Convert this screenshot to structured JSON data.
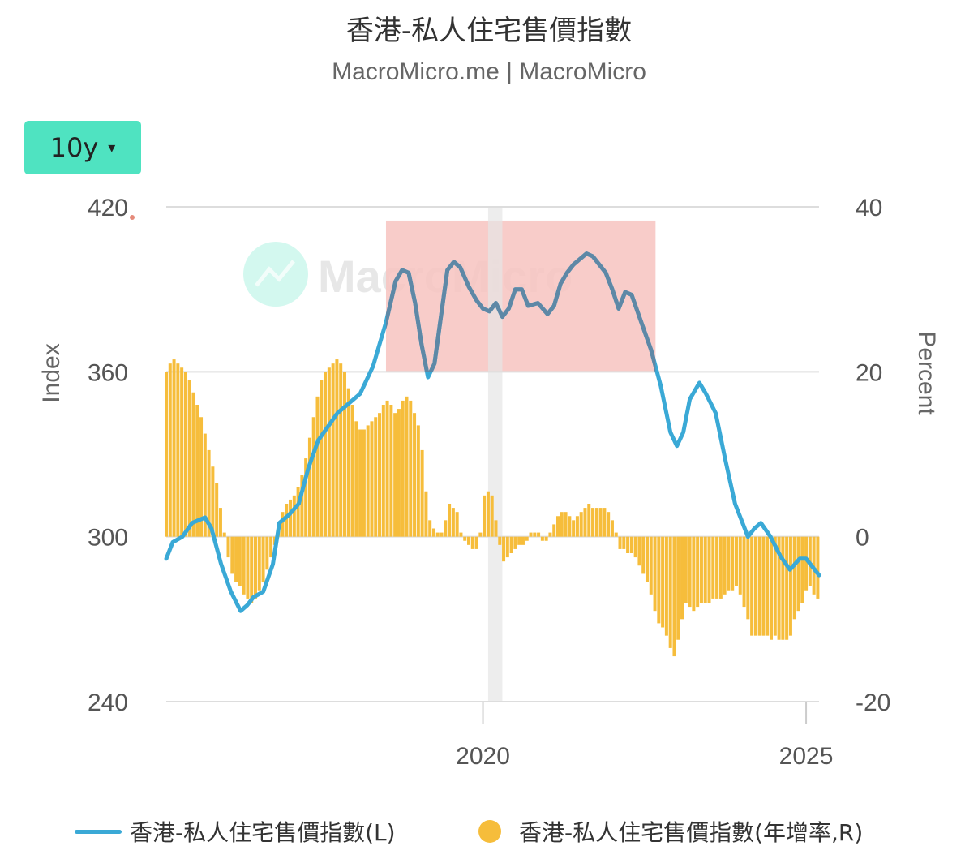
{
  "header": {
    "title": "香港-私人住宅售價指數",
    "subtitle": "MacroMicro.me | MacroMicro"
  },
  "range_selector": {
    "label": "10y",
    "caret": "▾"
  },
  "watermark": {
    "text": "MacroMicro"
  },
  "colors": {
    "line": "#3aa9d6",
    "line_highlighted": "#5e88a6",
    "bar": "#f6bd3b",
    "highlight_box": "#f7c3c0",
    "recession_band": "#e6e6e6",
    "grid": "#dddddd"
  },
  "chart_data": {
    "type": "line+bar",
    "title": "香港-私人住宅售價指數",
    "left_axis": {
      "label": "Index",
      "range": [
        240,
        420
      ],
      "ticks": [
        "420",
        "360",
        "300",
        "240"
      ]
    },
    "right_axis": {
      "label": "Percent",
      "range": [
        -20,
        40
      ],
      "ticks": [
        "40",
        "20",
        "0",
        "-20"
      ]
    },
    "x_axis": {
      "range": [
        2015.1,
        2025.2
      ],
      "ticks": [
        "2020",
        "2025"
      ],
      "tick_values": [
        2020,
        2025
      ]
    },
    "grid": true,
    "legend_position": "bottom",
    "highlight_region": {
      "x": [
        2018.5,
        2022.67
      ],
      "y": [
        360,
        415
      ]
    },
    "shaded_band": {
      "x": [
        2020.08,
        2020.3
      ]
    },
    "series": [
      {
        "name": "香港-私人住宅售價指數(L)",
        "type": "line",
        "axis": "left",
        "points": [
          [
            2015.1,
            292
          ],
          [
            2015.2,
            298
          ],
          [
            2015.35,
            300
          ],
          [
            2015.5,
            305
          ],
          [
            2015.7,
            307
          ],
          [
            2015.8,
            303
          ],
          [
            2015.95,
            290
          ],
          [
            2016.1,
            280
          ],
          [
            2016.25,
            273
          ],
          [
            2016.35,
            275
          ],
          [
            2016.45,
            278
          ],
          [
            2016.6,
            280
          ],
          [
            2016.75,
            290
          ],
          [
            2016.85,
            305
          ],
          [
            2017.0,
            308
          ],
          [
            2017.15,
            312
          ],
          [
            2017.3,
            325
          ],
          [
            2017.45,
            335
          ],
          [
            2017.6,
            340
          ],
          [
            2017.75,
            345
          ],
          [
            2017.9,
            348
          ],
          [
            2018.1,
            352
          ],
          [
            2018.3,
            362
          ],
          [
            2018.5,
            378
          ],
          [
            2018.65,
            393
          ],
          [
            2018.75,
            397
          ],
          [
            2018.85,
            396
          ],
          [
            2018.95,
            385
          ],
          [
            2019.05,
            370
          ],
          [
            2019.15,
            358
          ],
          [
            2019.25,
            363
          ],
          [
            2019.35,
            380
          ],
          [
            2019.45,
            397
          ],
          [
            2019.55,
            400
          ],
          [
            2019.65,
            398
          ],
          [
            2019.78,
            391
          ],
          [
            2019.9,
            386
          ],
          [
            2020.0,
            383
          ],
          [
            2020.1,
            382
          ],
          [
            2020.2,
            385
          ],
          [
            2020.3,
            380
          ],
          [
            2020.4,
            383
          ],
          [
            2020.5,
            390
          ],
          [
            2020.6,
            390
          ],
          [
            2020.7,
            384
          ],
          [
            2020.85,
            385
          ],
          [
            2021.0,
            381
          ],
          [
            2021.1,
            384
          ],
          [
            2021.2,
            392
          ],
          [
            2021.3,
            396
          ],
          [
            2021.4,
            399
          ],
          [
            2021.5,
            401
          ],
          [
            2021.6,
            403
          ],
          [
            2021.7,
            402
          ],
          [
            2021.8,
            399
          ],
          [
            2021.9,
            396
          ],
          [
            2022.0,
            390
          ],
          [
            2022.1,
            383
          ],
          [
            2022.2,
            389
          ],
          [
            2022.3,
            388
          ],
          [
            2022.45,
            378
          ],
          [
            2022.6,
            368
          ],
          [
            2022.75,
            355
          ],
          [
            2022.9,
            338
          ],
          [
            2023.0,
            333
          ],
          [
            2023.1,
            338
          ],
          [
            2023.2,
            350
          ],
          [
            2023.35,
            356
          ],
          [
            2023.45,
            352
          ],
          [
            2023.6,
            345
          ],
          [
            2023.75,
            328
          ],
          [
            2023.9,
            312
          ],
          [
            2024.1,
            300
          ],
          [
            2024.2,
            303
          ],
          [
            2024.3,
            305
          ],
          [
            2024.45,
            300
          ],
          [
            2024.6,
            293
          ],
          [
            2024.75,
            288
          ],
          [
            2024.9,
            292
          ],
          [
            2025.0,
            292
          ],
          [
            2025.1,
            289
          ],
          [
            2025.2,
            286
          ]
        ]
      },
      {
        "name": "香港-私人住宅售價指數(年增率,R)",
        "type": "bar",
        "axis": "right",
        "points": [
          [
            2015.1,
            20
          ],
          [
            2015.16,
            21
          ],
          [
            2015.22,
            21.5
          ],
          [
            2015.28,
            21
          ],
          [
            2015.34,
            20.5
          ],
          [
            2015.4,
            20
          ],
          [
            2015.46,
            19
          ],
          [
            2015.52,
            17.5
          ],
          [
            2015.58,
            16
          ],
          [
            2015.64,
            14.5
          ],
          [
            2015.7,
            12.5
          ],
          [
            2015.76,
            10.5
          ],
          [
            2015.82,
            8.5
          ],
          [
            2015.88,
            6.5
          ],
          [
            2015.94,
            3.5
          ],
          [
            2016.0,
            0.5
          ],
          [
            2016.06,
            -2.5
          ],
          [
            2016.12,
            -4.5
          ],
          [
            2016.18,
            -5.5
          ],
          [
            2016.24,
            -6
          ],
          [
            2016.3,
            -7
          ],
          [
            2016.36,
            -7.5
          ],
          [
            2016.42,
            -8
          ],
          [
            2016.48,
            -7.5
          ],
          [
            2016.54,
            -6.5
          ],
          [
            2016.6,
            -5.5
          ],
          [
            2016.66,
            -4
          ],
          [
            2016.72,
            -2.5
          ],
          [
            2016.78,
            -1
          ],
          [
            2016.84,
            1
          ],
          [
            2016.9,
            3
          ],
          [
            2016.96,
            4
          ],
          [
            2017.02,
            4.5
          ],
          [
            2017.08,
            5
          ],
          [
            2017.14,
            6
          ],
          [
            2017.2,
            7.5
          ],
          [
            2017.26,
            9.5
          ],
          [
            2017.32,
            12
          ],
          [
            2017.38,
            14.5
          ],
          [
            2017.44,
            17
          ],
          [
            2017.5,
            19
          ],
          [
            2017.56,
            20
          ],
          [
            2017.62,
            20.5
          ],
          [
            2017.68,
            21
          ],
          [
            2017.74,
            21.5
          ],
          [
            2017.8,
            21
          ],
          [
            2017.86,
            20
          ],
          [
            2017.92,
            18
          ],
          [
            2017.98,
            16
          ],
          [
            2018.04,
            14
          ],
          [
            2018.1,
            13
          ],
          [
            2018.16,
            13
          ],
          [
            2018.22,
            13.5
          ],
          [
            2018.28,
            14
          ],
          [
            2018.34,
            14.5
          ],
          [
            2018.4,
            15
          ],
          [
            2018.46,
            16
          ],
          [
            2018.52,
            16.5
          ],
          [
            2018.58,
            16
          ],
          [
            2018.64,
            15
          ],
          [
            2018.7,
            15.5
          ],
          [
            2018.76,
            16.5
          ],
          [
            2018.82,
            17
          ],
          [
            2018.88,
            16.5
          ],
          [
            2018.94,
            15
          ],
          [
            2019.0,
            13.5
          ],
          [
            2019.06,
            10.5
          ],
          [
            2019.12,
            5.5
          ],
          [
            2019.18,
            2
          ],
          [
            2019.24,
            1
          ],
          [
            2019.3,
            0.5
          ],
          [
            2019.36,
            0.5
          ],
          [
            2019.42,
            2
          ],
          [
            2019.48,
            4
          ],
          [
            2019.54,
            3.5
          ],
          [
            2019.6,
            3
          ],
          [
            2019.66,
            0.5
          ],
          [
            2019.72,
            -0.5
          ],
          [
            2019.78,
            -1
          ],
          [
            2019.84,
            -1.5
          ],
          [
            2019.9,
            -1.5
          ],
          [
            2019.96,
            0.5
          ],
          [
            2020.02,
            5
          ],
          [
            2020.08,
            5.5
          ],
          [
            2020.14,
            5
          ],
          [
            2020.2,
            2
          ],
          [
            2020.26,
            -1
          ],
          [
            2020.32,
            -3
          ],
          [
            2020.38,
            -2.5
          ],
          [
            2020.44,
            -2
          ],
          [
            2020.5,
            -1.5
          ],
          [
            2020.56,
            -1
          ],
          [
            2020.62,
            -1
          ],
          [
            2020.68,
            -0.5
          ],
          [
            2020.74,
            0.5
          ],
          [
            2020.8,
            0.5
          ],
          [
            2020.86,
            0.5
          ],
          [
            2020.92,
            -0.5
          ],
          [
            2020.98,
            -0.5
          ],
          [
            2021.04,
            0.5
          ],
          [
            2021.1,
            1.5
          ],
          [
            2021.16,
            2.5
          ],
          [
            2021.22,
            3
          ],
          [
            2021.28,
            3
          ],
          [
            2021.34,
            2.5
          ],
          [
            2021.4,
            2
          ],
          [
            2021.46,
            2.5
          ],
          [
            2021.52,
            3
          ],
          [
            2021.58,
            3.5
          ],
          [
            2021.64,
            4
          ],
          [
            2021.7,
            3.5
          ],
          [
            2021.76,
            3.5
          ],
          [
            2021.82,
            3.5
          ],
          [
            2021.88,
            3.5
          ],
          [
            2021.94,
            3
          ],
          [
            2022.0,
            2
          ],
          [
            2022.06,
            0.5
          ],
          [
            2022.12,
            -1.5
          ],
          [
            2022.18,
            -1.5
          ],
          [
            2022.24,
            -2
          ],
          [
            2022.3,
            -2
          ],
          [
            2022.36,
            -2.5
          ],
          [
            2022.42,
            -3.5
          ],
          [
            2022.48,
            -4.5
          ],
          [
            2022.54,
            -5.5
          ],
          [
            2022.6,
            -7
          ],
          [
            2022.66,
            -9
          ],
          [
            2022.72,
            -10.5
          ],
          [
            2022.78,
            -11
          ],
          [
            2022.84,
            -12
          ],
          [
            2022.9,
            -13.5
          ],
          [
            2022.96,
            -14.5
          ],
          [
            2023.02,
            -12.5
          ],
          [
            2023.08,
            -10
          ],
          [
            2023.14,
            -8
          ],
          [
            2023.2,
            -8.5
          ],
          [
            2023.26,
            -9
          ],
          [
            2023.32,
            -8.5
          ],
          [
            2023.38,
            -8
          ],
          [
            2023.44,
            -8
          ],
          [
            2023.5,
            -8
          ],
          [
            2023.56,
            -7.5
          ],
          [
            2023.62,
            -7.5
          ],
          [
            2023.68,
            -7.5
          ],
          [
            2023.74,
            -7
          ],
          [
            2023.8,
            -6.5
          ],
          [
            2023.86,
            -6.5
          ],
          [
            2023.92,
            -6
          ],
          [
            2023.98,
            -7
          ],
          [
            2024.04,
            -8.5
          ],
          [
            2024.1,
            -10
          ],
          [
            2024.16,
            -12
          ],
          [
            2024.22,
            -12
          ],
          [
            2024.28,
            -12
          ],
          [
            2024.34,
            -12
          ],
          [
            2024.4,
            -12
          ],
          [
            2024.46,
            -12.5
          ],
          [
            2024.52,
            -12
          ],
          [
            2024.58,
            -12.5
          ],
          [
            2024.64,
            -12.5
          ],
          [
            2024.7,
            -12.5
          ],
          [
            2024.76,
            -12
          ],
          [
            2024.82,
            -10
          ],
          [
            2024.88,
            -9
          ],
          [
            2024.94,
            -8
          ],
          [
            2025.0,
            -6.5
          ],
          [
            2025.06,
            -6
          ],
          [
            2025.12,
            -7
          ],
          [
            2025.18,
            -7.5
          ]
        ]
      }
    ]
  },
  "legend": {
    "items": [
      {
        "label": "香港-私人住宅售價指數(L)"
      },
      {
        "label": "香港-私人住宅售價指數(年增率,R)"
      }
    ]
  }
}
